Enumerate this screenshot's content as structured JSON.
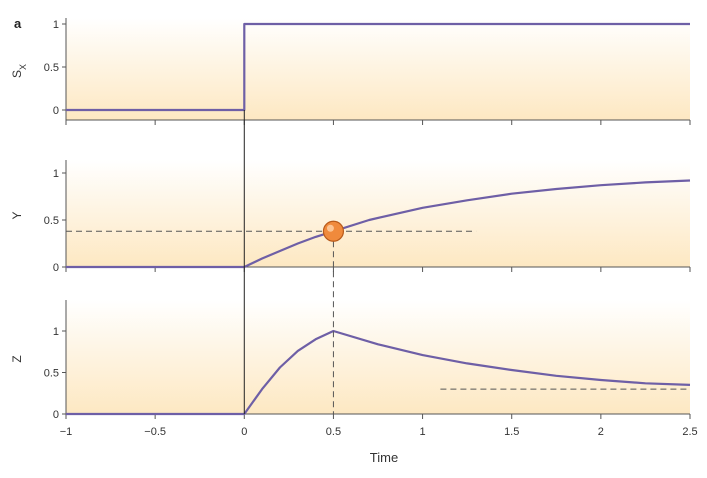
{
  "figure": {
    "panel_label": "a",
    "colors": {
      "curve": "#6e5fa6",
      "axis": "#555555",
      "dash": "#555555",
      "shade_strong": "#fde8c2",
      "shade_weak": "#ffffff",
      "marker_fill": "#f08a3c",
      "marker_stroke": "#b85a1a"
    }
  },
  "chart_data": [
    {
      "type": "line",
      "panel": "top",
      "ylabel": "S",
      "ylabel_subscript": "X",
      "xlim": [
        -1,
        2.5
      ],
      "ylim": [
        0,
        1
      ],
      "yticks": [
        0,
        0.5,
        1
      ],
      "ytick_labels": [
        "0",
        "0.5",
        "1"
      ],
      "xticks": [
        -1,
        -0.5,
        0,
        0.5,
        1,
        1.5,
        2,
        2.5
      ],
      "x_tick_labels_shown": false,
      "grid": false,
      "series": [
        {
          "x": [
            -1,
            0,
            0,
            2.5
          ],
          "y": [
            0,
            0,
            1,
            1
          ]
        }
      ]
    },
    {
      "type": "line",
      "panel": "middle",
      "ylabel": "Y",
      "xlim": [
        -1,
        2.5
      ],
      "ylim": [
        0,
        1
      ],
      "yticks": [
        0,
        0.5,
        1
      ],
      "ytick_labels": [
        "0",
        "0.5",
        "1"
      ],
      "xticks": [
        -1,
        -0.5,
        0,
        0.5,
        1,
        1.5,
        2,
        2.5
      ],
      "x_tick_labels_shown": false,
      "grid": false,
      "series": [
        {
          "x": [
            -1,
            0,
            0.1,
            0.2,
            0.3,
            0.4,
            0.5,
            0.7,
            1.0,
            1.25,
            1.5,
            1.75,
            2.0,
            2.25,
            2.5
          ],
          "y": [
            0,
            0,
            0.09,
            0.17,
            0.25,
            0.32,
            0.38,
            0.5,
            0.63,
            0.71,
            0.78,
            0.83,
            0.87,
            0.9,
            0.92
          ]
        }
      ],
      "marker": {
        "x": 0.5,
        "y": 0.38
      },
      "threshold": {
        "y": 0.38,
        "x_from": -1,
        "x_to": 1.3
      }
    },
    {
      "type": "line",
      "panel": "bottom",
      "ylabel": "Z",
      "xlabel": "Time",
      "xlim": [
        -1,
        2.5
      ],
      "ylim": [
        0,
        1.2
      ],
      "yticks": [
        0,
        0.5,
        1
      ],
      "ytick_labels": [
        "0",
        "0.5",
        "1"
      ],
      "xticks": [
        -1,
        -0.5,
        0,
        0.5,
        1,
        1.5,
        2,
        2.5
      ],
      "xtick_labels": [
        "−1",
        "−0.5",
        "0",
        "0.5",
        "1",
        "1.5",
        "2",
        "2.5"
      ],
      "grid": false,
      "series": [
        {
          "x": [
            -1,
            0,
            0.1,
            0.2,
            0.3,
            0.4,
            0.5,
            0.75,
            1.0,
            1.25,
            1.5,
            1.75,
            2.0,
            2.25,
            2.5
          ],
          "y": [
            0,
            0,
            0.3,
            0.56,
            0.76,
            0.9,
            1.0,
            0.84,
            0.71,
            0.61,
            0.53,
            0.46,
            0.41,
            0.37,
            0.35
          ]
        }
      ],
      "asymptote": {
        "y": 0.3,
        "x_from": 1.1,
        "x_to": 2.5
      }
    }
  ]
}
